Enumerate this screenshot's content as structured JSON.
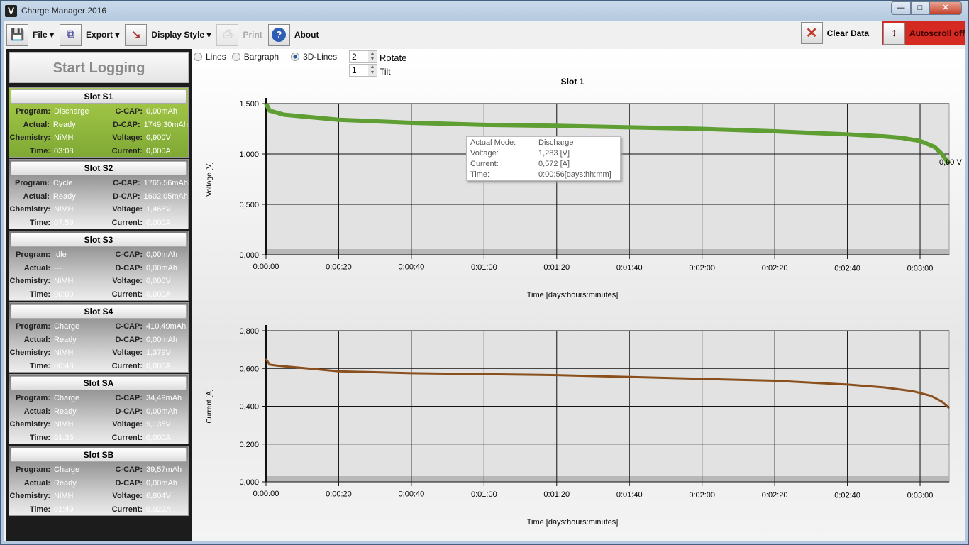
{
  "window": {
    "title": "Charge Manager 2016",
    "logo": "V"
  },
  "toolbar": {
    "file": "File",
    "export": "Export",
    "display_style": "Display Style",
    "print": "Print",
    "about": "About",
    "clear_data": "Clear Data",
    "autoscroll": "Autoscroll off",
    "autoscroll_color": "#d42a22"
  },
  "start_logging": "Start Logging",
  "display": {
    "lines": "Lines",
    "bargraph": "Bargraph",
    "lines3d": "3D-Lines",
    "selected": "3D-Lines",
    "rotate_value": "2",
    "rotate_label": "Rotate",
    "tilt_value": "1",
    "tilt_label": "Tilt"
  },
  "labels": {
    "program": "Program:",
    "actual": "Actual:",
    "chemistry": "Chemistry:",
    "time": "Time:",
    "ccap": "C-CAP:",
    "dcap": "D-CAP:",
    "voltage": "Voltage:",
    "current": "Current:"
  },
  "slots": [
    {
      "name": "Slot S1",
      "program": "Discharge",
      "actual": "Ready",
      "chemistry": "NiMH",
      "time": "03:08",
      "ccap": "0,00mAh",
      "dcap": "1749,30mAh",
      "voltage": "0,900V",
      "current": "0,000A",
      "active": true
    },
    {
      "name": "Slot S2",
      "program": "Cycle",
      "actual": "Ready",
      "chemistry": "NiMH",
      "time": "07:59",
      "ccap": "1765,56mAh",
      "dcap": "1602,05mAh",
      "voltage": "1,468V",
      "current": "0,000A"
    },
    {
      "name": "Slot S3",
      "program": "Idle",
      "actual": "---",
      "chemistry": "NiMH",
      "time": "00:00",
      "ccap": "0,00mAh",
      "dcap": "0,00mAh",
      "voltage": "0,000V",
      "current": "0,000A"
    },
    {
      "name": "Slot S4",
      "program": "Charge",
      "actual": "Ready",
      "chemistry": "NiMH",
      "time": "00:48",
      "ccap": "410,49mAh",
      "dcap": "0,00mAh",
      "voltage": "1,379V",
      "current": "0,000A"
    },
    {
      "name": "Slot SA",
      "program": "Charge",
      "actual": "Ready",
      "chemistry": "NiMH",
      "time": "01:35",
      "ccap": "34,49mAh",
      "dcap": "0,00mAh",
      "voltage": "9,135V",
      "current": "0,000A"
    },
    {
      "name": "Slot SB",
      "program": "Charge",
      "actual": "Ready",
      "chemistry": "NiMH",
      "time": "01:49",
      "ccap": "39,57mAh",
      "dcap": "0,00mAh",
      "voltage": "6,804V",
      "current": "0,022A"
    }
  ],
  "tooltip": {
    "mode_label": "Actual Mode:",
    "mode": "Discharge",
    "voltage_label": "Voltage:",
    "voltage": "1,283 [V]",
    "current_label": "Current:",
    "current": "0,572 [A]",
    "time_label": "Time:",
    "time": "0:00:56[days:hh:mm]"
  },
  "chart_data": [
    {
      "type": "line",
      "title": "Slot 1",
      "xlabel": "Time [days:hours:minutes]",
      "ylabel": "Voltage [V]",
      "color": "#5f9e32",
      "xticks": [
        "0:00:00",
        "0:00:20",
        "0:00:40",
        "0:01:00",
        "0:01:20",
        "0:01:40",
        "0:02:00",
        "0:02:20",
        "0:02:40",
        "0:03:00"
      ],
      "yticks": [
        "0,000",
        "0,500",
        "1,000",
        "1,500"
      ],
      "ylim": [
        0,
        1.5
      ],
      "xlim_seconds": [
        0,
        188
      ],
      "end_label": "0,90 V",
      "x_seconds": [
        0,
        1,
        5,
        20,
        40,
        60,
        80,
        100,
        120,
        140,
        160,
        170,
        175,
        180,
        184,
        186,
        188
      ],
      "values": [
        1.5,
        1.43,
        1.39,
        1.34,
        1.31,
        1.29,
        1.28,
        1.265,
        1.25,
        1.225,
        1.195,
        1.175,
        1.16,
        1.13,
        1.07,
        1.0,
        0.9
      ]
    },
    {
      "type": "line",
      "title": "",
      "xlabel": "Time [days:hours:minutes]",
      "ylabel": "Current [A]",
      "color": "#8a4f1c",
      "xticks": [
        "0:00:00",
        "0:00:20",
        "0:00:40",
        "0:01:00",
        "0:01:20",
        "0:01:40",
        "0:02:00",
        "0:02:20",
        "0:02:40",
        "0:03:00"
      ],
      "yticks": [
        "0,000",
        "0,200",
        "0,400",
        "0,600",
        "0,800"
      ],
      "ylim": [
        0,
        0.8
      ],
      "xlim_seconds": [
        0,
        188
      ],
      "x_seconds": [
        0,
        1,
        3,
        20,
        40,
        60,
        80,
        100,
        120,
        140,
        160,
        170,
        178,
        183,
        186,
        188
      ],
      "values": [
        0.65,
        0.62,
        0.615,
        0.585,
        0.575,
        0.57,
        0.565,
        0.555,
        0.545,
        0.535,
        0.515,
        0.5,
        0.48,
        0.455,
        0.425,
        0.39
      ]
    }
  ]
}
